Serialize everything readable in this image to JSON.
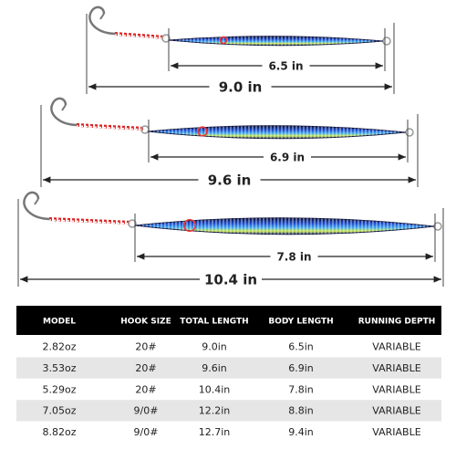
{
  "lures": [
    {
      "body_length": "6.5 in",
      "total_length": "9.0 in"
    },
    {
      "body_length": "6.9 in",
      "total_length": "9.6 in"
    },
    {
      "body_length": "7.8 in",
      "total_length": "10.4 in"
    }
  ],
  "table": {
    "header": [
      "MODEL",
      "HOOK SIZE",
      "TOTAL LENGTH",
      "BODY LENGTH",
      "RUNNING DEPTH"
    ],
    "rows": [
      [
        "2.82oz",
        "20#",
        "9.0in",
        "6.5in",
        "VARIABLE"
      ],
      [
        "3.53oz",
        "20#",
        "9.6in",
        "6.9in",
        "VARIABLE"
      ],
      [
        "5.29oz",
        "20#",
        "10.4in",
        "7.8in",
        "VARIABLE"
      ],
      [
        "7.05oz",
        "9/0#",
        "12.2in",
        "8.8in",
        "VARIABLE"
      ],
      [
        "8.82oz",
        "9/0#",
        "12.7in",
        "9.4in",
        "VARIABLE"
      ]
    ]
  }
}
